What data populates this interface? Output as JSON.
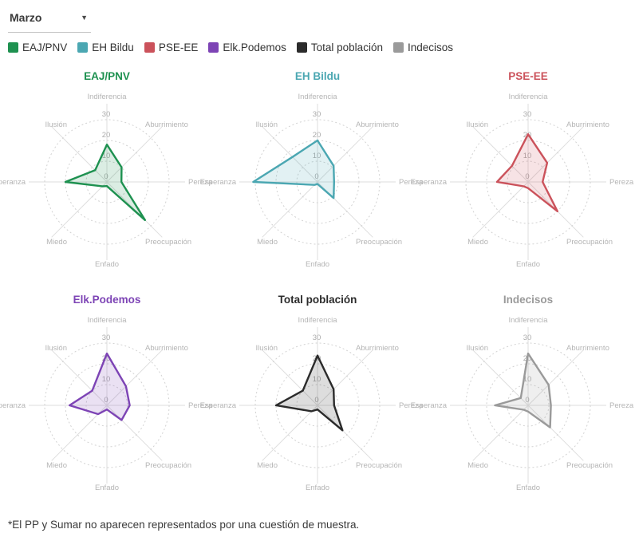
{
  "dropdown": {
    "value": "Marzo"
  },
  "footnote": "*El PP y Sumar no aparecen representados por una cuestión de muestra.",
  "chart_data": {
    "type": "radar",
    "layout": "2 rows x 3 columns, one radar per group; legend top, shared axes",
    "categories": [
      "Indiferencia",
      "Aburrimiento",
      "Pereza",
      "Preocupación",
      "Enfado",
      "Miedo",
      "Esperanza",
      "Ilusión"
    ],
    "ticks": [
      0,
      10,
      20,
      30
    ],
    "rmax": 30,
    "grid": "dashed concentric circles at 10/20/30 with 8 light radial spokes",
    "series": [
      {
        "name": "EAJ/PNV",
        "color": "#1e9150",
        "values": [
          18,
          10,
          7,
          26,
          2,
          3,
          20,
          8
        ]
      },
      {
        "name": "EH Bildu",
        "color": "#4ba7b2",
        "values": [
          20,
          11,
          8,
          11,
          1,
          2,
          31,
          17
        ]
      },
      {
        "name": "PSE-EE",
        "color": "#cb525b",
        "values": [
          23,
          13,
          7,
          20,
          3,
          3,
          15,
          11
        ]
      },
      {
        "name": "Elk.Podemos",
        "color": "#7d44b5",
        "values": [
          25,
          13,
          11,
          10,
          2,
          6,
          18,
          10
        ]
      },
      {
        "name": "Total población",
        "color": "#2b2b2b",
        "values": [
          24,
          11,
          8,
          17,
          2,
          4,
          20,
          10
        ]
      },
      {
        "name": "Indecisos",
        "color": "#9a9a9a",
        "values": [
          25,
          14,
          11,
          15,
          3,
          3,
          16,
          5
        ]
      }
    ]
  }
}
